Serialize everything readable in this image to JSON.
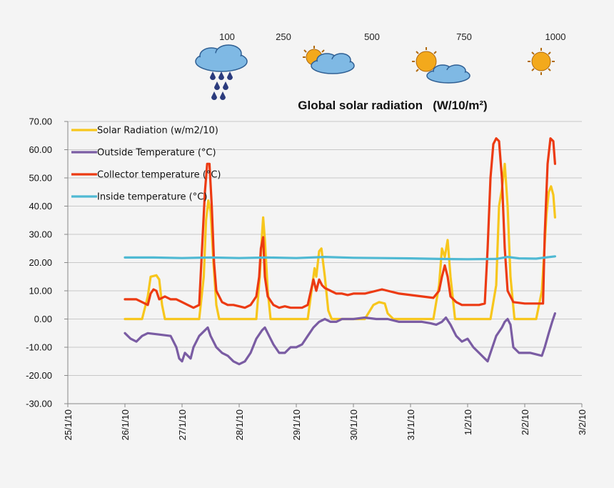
{
  "header": {
    "radiation_levels": [
      {
        "value": "100",
        "icon": "rain-cloud-icon"
      },
      {
        "value": "250",
        "icon": "sun-behind-cloud-icon"
      },
      {
        "value": "500",
        "icon": ""
      },
      {
        "value": "750",
        "icon": "sun-with-cloud-icon"
      },
      {
        "value": "1000",
        "icon": "sun-icon"
      }
    ],
    "title": "Global solar radiation   (W/10/m²)"
  },
  "chart_data": {
    "type": "line",
    "title": "",
    "xlabel": "",
    "ylabel": "",
    "x_tick_labels": [
      "25/1/10",
      "26/1/10",
      "27/1/10",
      "28/1/10",
      "29/1/10",
      "30/1/10",
      "31/1/10",
      "1/2/10",
      "2/2/10",
      "3/2/10"
    ],
    "y_tick_labels": [
      "70.00",
      "60.00",
      "50.00",
      "40.00",
      "30.00",
      "20.00",
      "10.00",
      "0.00",
      "-10.00",
      "-20.00",
      "-30.00"
    ],
    "ylim": [
      -30,
      70
    ],
    "x_range_days": [
      0,
      9
    ],
    "x_unit": "days from 25/1/10",
    "grid": "horizontal",
    "legend_placement": "top-left",
    "series": [
      {
        "name": "Solar Radiation (w/m2/10)",
        "color": "#f7c61c",
        "points": [
          [
            1,
            0
          ],
          [
            1.3,
            0
          ],
          [
            1.4,
            8
          ],
          [
            1.45,
            15
          ],
          [
            1.55,
            15.5
          ],
          [
            1.6,
            14
          ],
          [
            1.65,
            5
          ],
          [
            1.7,
            0
          ],
          [
            2.3,
            0
          ],
          [
            2.38,
            15
          ],
          [
            2.42,
            35
          ],
          [
            2.46,
            42
          ],
          [
            2.5,
            38
          ],
          [
            2.55,
            20
          ],
          [
            2.6,
            5
          ],
          [
            2.65,
            0
          ],
          [
            3.3,
            0
          ],
          [
            3.36,
            15
          ],
          [
            3.4,
            30
          ],
          [
            3.42,
            36
          ],
          [
            3.45,
            28
          ],
          [
            3.5,
            10
          ],
          [
            3.55,
            0
          ],
          [
            4.2,
            0
          ],
          [
            4.28,
            12
          ],
          [
            4.32,
            18
          ],
          [
            4.35,
            15
          ],
          [
            4.4,
            24
          ],
          [
            4.44,
            25
          ],
          [
            4.5,
            15
          ],
          [
            4.56,
            3
          ],
          [
            4.62,
            0
          ],
          [
            5.2,
            0
          ],
          [
            5.35,
            5
          ],
          [
            5.45,
            6
          ],
          [
            5.55,
            5.5
          ],
          [
            5.6,
            2
          ],
          [
            5.7,
            0
          ],
          [
            6.4,
            0
          ],
          [
            6.5,
            12
          ],
          [
            6.55,
            25
          ],
          [
            6.6,
            22
          ],
          [
            6.65,
            28
          ],
          [
            6.7,
            15
          ],
          [
            6.78,
            0
          ],
          [
            7.4,
            0
          ],
          [
            7.5,
            12
          ],
          [
            7.55,
            40
          ],
          [
            7.6,
            46
          ],
          [
            7.65,
            55
          ],
          [
            7.7,
            40
          ],
          [
            7.75,
            15
          ],
          [
            7.82,
            0
          ],
          [
            8.2,
            0
          ],
          [
            8.3,
            10
          ],
          [
            8.38,
            37
          ],
          [
            8.42,
            45
          ],
          [
            8.46,
            47
          ],
          [
            8.5,
            44
          ],
          [
            8.53,
            36
          ]
        ]
      },
      {
        "name": "Outside Temperature (°C)",
        "color": "#7a5ca3",
        "points": [
          [
            1,
            -5
          ],
          [
            1.1,
            -7
          ],
          [
            1.2,
            -8
          ],
          [
            1.3,
            -6
          ],
          [
            1.4,
            -5
          ],
          [
            1.6,
            -5.5
          ],
          [
            1.8,
            -6
          ],
          [
            1.9,
            -10
          ],
          [
            1.95,
            -14
          ],
          [
            2,
            -15
          ],
          [
            2.05,
            -12
          ],
          [
            2.1,
            -13
          ],
          [
            2.15,
            -14
          ],
          [
            2.2,
            -10
          ],
          [
            2.3,
            -6
          ],
          [
            2.4,
            -4
          ],
          [
            2.45,
            -3
          ],
          [
            2.5,
            -6
          ],
          [
            2.6,
            -10
          ],
          [
            2.7,
            -12
          ],
          [
            2.8,
            -13
          ],
          [
            2.9,
            -15
          ],
          [
            3,
            -16
          ],
          [
            3.1,
            -15
          ],
          [
            3.2,
            -12
          ],
          [
            3.3,
            -7
          ],
          [
            3.4,
            -4
          ],
          [
            3.45,
            -3
          ],
          [
            3.5,
            -5
          ],
          [
            3.6,
            -9
          ],
          [
            3.7,
            -12
          ],
          [
            3.8,
            -12
          ],
          [
            3.9,
            -10
          ],
          [
            4,
            -10
          ],
          [
            4.1,
            -9
          ],
          [
            4.2,
            -6
          ],
          [
            4.3,
            -3
          ],
          [
            4.4,
            -1
          ],
          [
            4.5,
            0
          ],
          [
            4.6,
            -1
          ],
          [
            4.7,
            -1
          ],
          [
            4.8,
            0
          ],
          [
            5,
            0
          ],
          [
            5.2,
            0.5
          ],
          [
            5.4,
            0
          ],
          [
            5.6,
            0
          ],
          [
            5.8,
            -1
          ],
          [
            6,
            -1
          ],
          [
            6.2,
            -1
          ],
          [
            6.35,
            -1.5
          ],
          [
            6.45,
            -2
          ],
          [
            6.55,
            -1
          ],
          [
            6.62,
            0.5
          ],
          [
            6.7,
            -2
          ],
          [
            6.8,
            -6
          ],
          [
            6.9,
            -8
          ],
          [
            7,
            -7
          ],
          [
            7.1,
            -10
          ],
          [
            7.2,
            -12
          ],
          [
            7.3,
            -14
          ],
          [
            7.35,
            -15
          ],
          [
            7.4,
            -12
          ],
          [
            7.5,
            -6
          ],
          [
            7.6,
            -3
          ],
          [
            7.65,
            -1
          ],
          [
            7.7,
            0
          ],
          [
            7.75,
            -2
          ],
          [
            7.8,
            -10
          ],
          [
            7.9,
            -12
          ],
          [
            8.1,
            -12
          ],
          [
            8.2,
            -12.5
          ],
          [
            8.3,
            -13
          ],
          [
            8.35,
            -10
          ],
          [
            8.42,
            -5
          ],
          [
            8.48,
            -1
          ],
          [
            8.53,
            2
          ]
        ]
      },
      {
        "name": "Collector temperature (°C)",
        "color": "#ec3a12",
        "points": [
          [
            1,
            7
          ],
          [
            1.2,
            7
          ],
          [
            1.3,
            6
          ],
          [
            1.4,
            5
          ],
          [
            1.45,
            9
          ],
          [
            1.5,
            10.5
          ],
          [
            1.55,
            10
          ],
          [
            1.6,
            7
          ],
          [
            1.7,
            8
          ],
          [
            1.8,
            7
          ],
          [
            1.9,
            7
          ],
          [
            2,
            6
          ],
          [
            2.1,
            5
          ],
          [
            2.2,
            4
          ],
          [
            2.3,
            5
          ],
          [
            2.35,
            25
          ],
          [
            2.4,
            45
          ],
          [
            2.44,
            55
          ],
          [
            2.48,
            55
          ],
          [
            2.52,
            40
          ],
          [
            2.56,
            20
          ],
          [
            2.6,
            10
          ],
          [
            2.7,
            6
          ],
          [
            2.8,
            5
          ],
          [
            2.9,
            5
          ],
          [
            3,
            4.5
          ],
          [
            3.1,
            4
          ],
          [
            3.2,
            5
          ],
          [
            3.3,
            8
          ],
          [
            3.35,
            15
          ],
          [
            3.38,
            25
          ],
          [
            3.42,
            29
          ],
          [
            3.45,
            15
          ],
          [
            3.5,
            8
          ],
          [
            3.6,
            5
          ],
          [
            3.7,
            4
          ],
          [
            3.8,
            4.5
          ],
          [
            3.9,
            4
          ],
          [
            4,
            4
          ],
          [
            4.1,
            4
          ],
          [
            4.2,
            5
          ],
          [
            4.3,
            14
          ],
          [
            4.35,
            10
          ],
          [
            4.4,
            14
          ],
          [
            4.45,
            12
          ],
          [
            4.5,
            11
          ],
          [
            4.6,
            10
          ],
          [
            4.7,
            9
          ],
          [
            4.8,
            9
          ],
          [
            4.9,
            8.5
          ],
          [
            5,
            9
          ],
          [
            5.2,
            9
          ],
          [
            5.4,
            10
          ],
          [
            5.5,
            10.5
          ],
          [
            5.6,
            10
          ],
          [
            5.8,
            9
          ],
          [
            6,
            8.5
          ],
          [
            6.2,
            8
          ],
          [
            6.4,
            7.5
          ],
          [
            6.5,
            10
          ],
          [
            6.55,
            15
          ],
          [
            6.6,
            19
          ],
          [
            6.65,
            15
          ],
          [
            6.7,
            8
          ],
          [
            6.8,
            6
          ],
          [
            6.9,
            5
          ],
          [
            7,
            5
          ],
          [
            7.1,
            5
          ],
          [
            7.2,
            5
          ],
          [
            7.3,
            5.5
          ],
          [
            7.35,
            25
          ],
          [
            7.4,
            50
          ],
          [
            7.45,
            62
          ],
          [
            7.5,
            64
          ],
          [
            7.55,
            63
          ],
          [
            7.6,
            50
          ],
          [
            7.65,
            25
          ],
          [
            7.7,
            10
          ],
          [
            7.8,
            6
          ],
          [
            8,
            5.5
          ],
          [
            8.2,
            5.5
          ],
          [
            8.32,
            5.5
          ],
          [
            8.35,
            30
          ],
          [
            8.4,
            55
          ],
          [
            8.45,
            64
          ],
          [
            8.5,
            63
          ],
          [
            8.53,
            55
          ]
        ]
      },
      {
        "name": "Inside temperature (°C)",
        "color": "#4fb9d3",
        "points": [
          [
            1,
            21.8
          ],
          [
            1.5,
            21.8
          ],
          [
            2,
            21.6
          ],
          [
            2.5,
            21.8
          ],
          [
            3,
            21.6
          ],
          [
            3.5,
            21.8
          ],
          [
            4,
            21.6
          ],
          [
            4.5,
            22
          ],
          [
            5,
            21.7
          ],
          [
            5.5,
            21.6
          ],
          [
            6,
            21.5
          ],
          [
            6.5,
            21.3
          ],
          [
            7,
            21.2
          ],
          [
            7.5,
            21.3
          ],
          [
            7.7,
            22
          ],
          [
            7.9,
            21.5
          ],
          [
            8.2,
            21.4
          ],
          [
            8.53,
            22.2
          ]
        ]
      }
    ]
  }
}
